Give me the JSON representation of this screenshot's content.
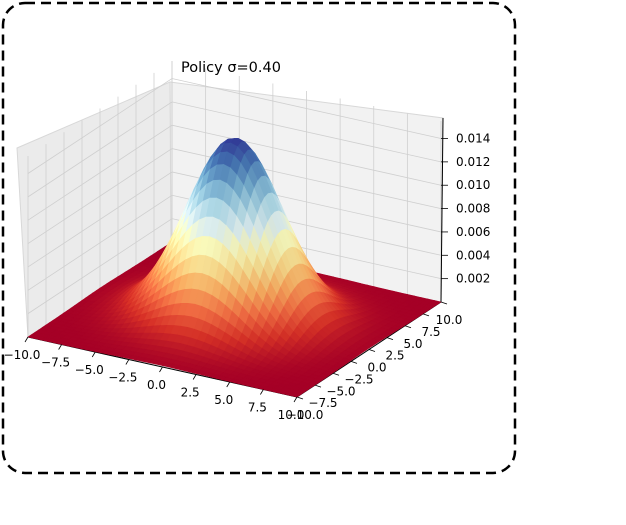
{
  "chart_data": {
    "type": "surface3d",
    "title": "Policy σ=0.40",
    "xlabel": "",
    "ylabel": "",
    "zlabel": "",
    "x_ticks": [
      "−10.0",
      "−7.5",
      "−5.0",
      "−2.5",
      "0.0",
      "2.5",
      "5.0",
      "7.5",
      "10.0"
    ],
    "y_ticks": [
      "−10.0",
      "−7.5",
      "−5.0",
      "−2.5",
      "0.0",
      "2.5",
      "5.0",
      "7.5",
      "10.0"
    ],
    "z_ticks": [
      "0.002",
      "0.004",
      "0.006",
      "0.008",
      "0.010",
      "0.012",
      "0.014"
    ],
    "xlim": [
      -10,
      10
    ],
    "ylim": [
      -10,
      10
    ],
    "zlim": [
      0,
      0.0155
    ],
    "surface": {
      "mean": [
        0,
        0
      ],
      "sigma": 3.2,
      "peak": 0.0155
    },
    "colormap": "RdYlBu",
    "grid": true
  }
}
